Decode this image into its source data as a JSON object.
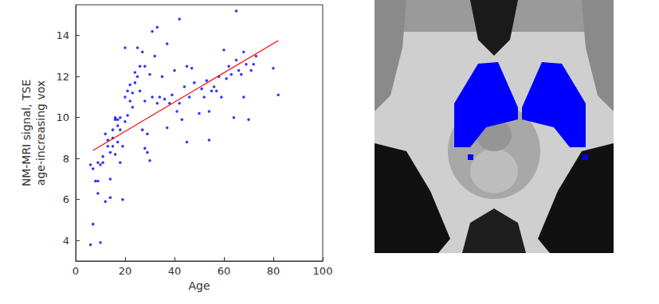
{
  "chart_data": {
    "type": "scatter",
    "xlabel": "Age",
    "ylabel": "NM-MRI signal, TSE\nage-increasing vox",
    "xlim": [
      0,
      100
    ],
    "xticks": [
      0,
      20,
      40,
      60,
      80,
      100
    ],
    "ylim": [
      3,
      15.5
    ],
    "yticks": [
      4,
      6,
      8,
      10,
      12,
      14
    ],
    "grid": false,
    "series": [
      {
        "type": "scatter",
        "color": "#0000ff",
        "marker": "dot",
        "x": [
          6,
          7,
          10,
          6,
          7,
          8,
          9,
          9,
          9,
          10,
          11,
          11,
          12,
          12,
          13,
          13,
          14,
          14,
          14,
          15,
          15,
          15,
          16,
          16,
          16,
          17,
          17,
          17,
          18,
          18,
          18,
          19,
          19,
          20,
          20,
          20,
          21,
          21,
          22,
          22,
          23,
          23,
          24,
          24,
          25,
          25,
          26,
          26,
          27,
          27,
          28,
          28,
          28,
          29,
          29,
          30,
          30,
          31,
          31,
          32,
          33,
          33,
          34,
          35,
          36,
          37,
          37,
          38,
          39,
          40,
          41,
          42,
          42,
          43,
          44,
          45,
          45,
          46,
          47,
          48,
          50,
          51,
          52,
          53,
          54,
          54,
          55,
          56,
          57,
          58,
          59,
          60,
          61,
          62,
          63,
          64,
          65,
          65,
          66,
          67,
          68,
          68,
          69,
          70,
          71,
          72,
          73,
          80,
          82
        ],
        "values": [
          3.8,
          4.8,
          3.9,
          7.7,
          7.5,
          6.9,
          7.8,
          6.9,
          6.3,
          7.7,
          7.8,
          8.1,
          9.2,
          5.9,
          8.6,
          8.9,
          8.3,
          6.1,
          7.0,
          9.0,
          9.4,
          8.6,
          10.0,
          9.9,
          8.2,
          8.8,
          9.6,
          9.9,
          7.8,
          9.4,
          10.0,
          8.6,
          6.0,
          11.0,
          13.4,
          9.8,
          10.1,
          11.3,
          10.8,
          11.6,
          10.5,
          11.2,
          12.2,
          11.7,
          12.0,
          13.4,
          11.3,
          12.5,
          9.4,
          13.2,
          12.5,
          8.5,
          10.8,
          9.2,
          8.3,
          7.9,
          12.1,
          14.2,
          11.0,
          13.0,
          14.4,
          10.7,
          11.0,
          12.0,
          10.9,
          13.6,
          9.5,
          10.7,
          11.1,
          12.3,
          10.3,
          14.8,
          10.7,
          9.9,
          11.5,
          8.8,
          12.5,
          11.0,
          12.4,
          11.7,
          10.2,
          11.4,
          11.0,
          11.8,
          8.9,
          10.3,
          11.3,
          11.5,
          11.3,
          12.0,
          11.0,
          13.3,
          11.9,
          12.5,
          12.1,
          10.0,
          15.2,
          12.8,
          12.3,
          12.1,
          13.2,
          11.0,
          12.6,
          9.9,
          12.3,
          12.6,
          13.0,
          12.4,
          11.1
        ]
      },
      {
        "type": "line",
        "color": "#ff0000",
        "line_style": "solid",
        "x": [
          7,
          82
        ],
        "values": [
          8.4,
          13.75
        ]
      }
    ]
  }
}
